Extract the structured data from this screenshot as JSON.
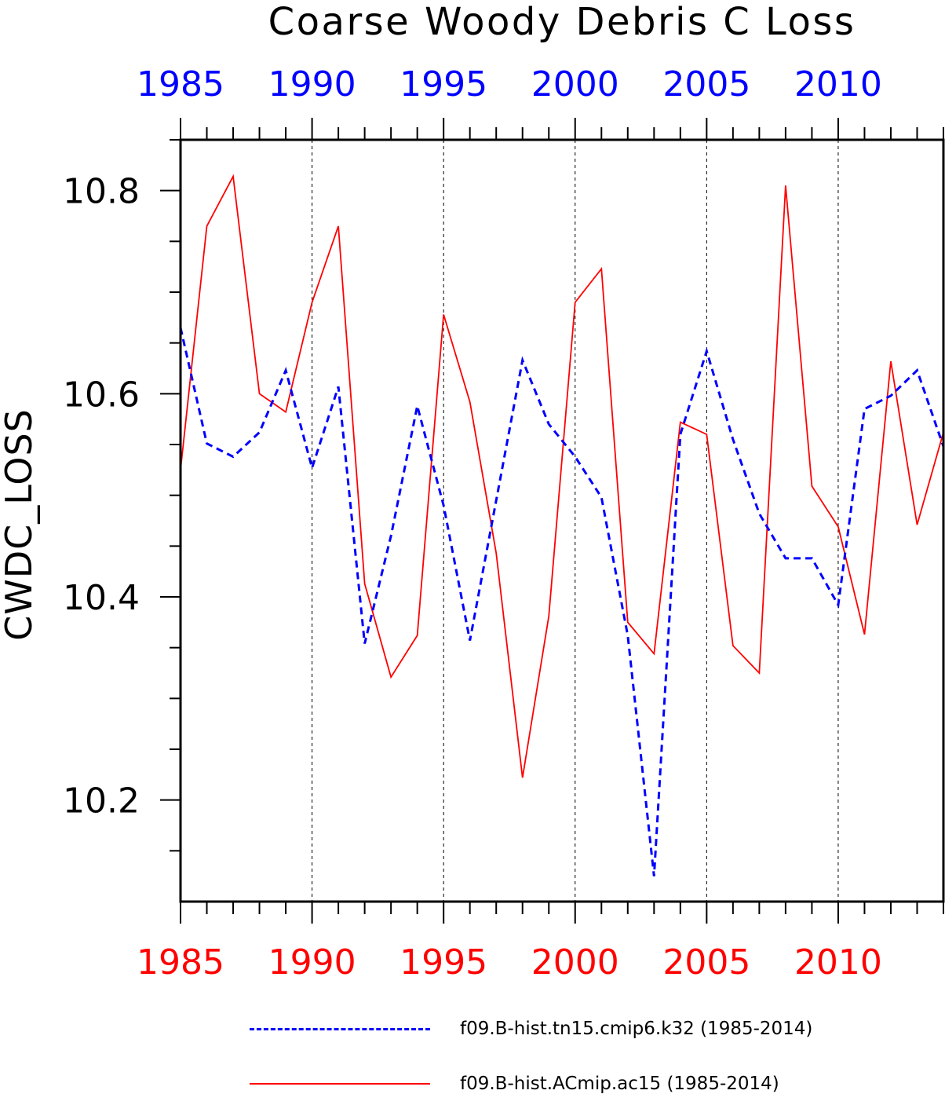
{
  "chart_data": {
    "type": "line",
    "title": "Coarse Woody Debris C Loss",
    "ylabel": "CWDC_LOSS",
    "xlabel": "",
    "xlim": [
      1985,
      2014
    ],
    "ylim": [
      10.1,
      10.85
    ],
    "x_ticks": [
      1985,
      1990,
      1995,
      2000,
      2005,
      2010
    ],
    "x_tick_labels": [
      "1985",
      "1990",
      "1995",
      "2000",
      "2005",
      "2010"
    ],
    "y_ticks": [
      10.2,
      10.4,
      10.6,
      10.8
    ],
    "y_tick_labels": [
      "10.2",
      "10.4",
      "10.6",
      "10.8"
    ],
    "grid": "vertical dashed at major x ticks",
    "legend_position": "bottom",
    "x": [
      1985,
      1986,
      1987,
      1988,
      1989,
      1990,
      1991,
      1992,
      1993,
      1994,
      1995,
      1996,
      1997,
      1998,
      1999,
      2000,
      2001,
      2002,
      2003,
      2004,
      2005,
      2006,
      2007,
      2008,
      2009,
      2010,
      2011,
      2012,
      2013,
      2014
    ],
    "series": [
      {
        "name": "f09.B-hist.tn15.cmip6.k32 (1985-2014)",
        "color": "#0000ff",
        "style": "dashed",
        "values": [
          10.665,
          10.551,
          10.538,
          10.562,
          10.623,
          10.527,
          10.607,
          10.354,
          10.46,
          10.588,
          10.49,
          10.357,
          10.495,
          10.633,
          10.57,
          10.538,
          10.498,
          10.362,
          10.125,
          10.56,
          10.642,
          10.555,
          10.482,
          10.438,
          10.438,
          10.392,
          10.585,
          10.598,
          10.623,
          10.548
        ]
      },
      {
        "name": "f09.B-hist.ACmip.ac15 (1985-2014)",
        "color": "#ff0000",
        "style": "solid",
        "values": [
          10.525,
          10.765,
          10.814,
          10.6,
          10.582,
          10.69,
          10.765,
          10.413,
          10.321,
          10.362,
          10.678,
          10.592,
          10.443,
          10.222,
          10.381,
          10.69,
          10.723,
          10.375,
          10.344,
          10.572,
          10.56,
          10.352,
          10.325,
          10.805,
          10.509,
          10.469,
          10.363,
          10.632,
          10.471,
          10.562
        ]
      }
    ]
  }
}
